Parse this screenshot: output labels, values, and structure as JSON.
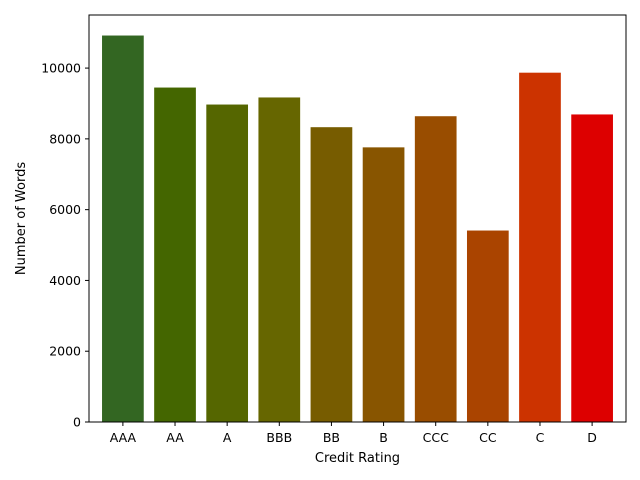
{
  "chart_data": {
    "type": "bar",
    "title": "",
    "xlabel": "Credit Rating",
    "ylabel": "Number of Words",
    "categories": [
      "AAA",
      "AA",
      "A",
      "BBB",
      "BB",
      "B",
      "CCC",
      "CC",
      "C",
      "D"
    ],
    "values": [
      10920,
      9450,
      8970,
      9170,
      8330,
      7760,
      8640,
      5410,
      9870,
      8690
    ],
    "colors": [
      "#336622",
      "#446600",
      "#556600",
      "#666600",
      "#775c00",
      "#885500",
      "#994d00",
      "#aa4400",
      "#cc3300",
      "#dd0000"
    ],
    "ylim": [
      0,
      11500
    ],
    "yticks": [
      0,
      2000,
      4000,
      6000,
      8000,
      10000
    ],
    "grid": false
  }
}
